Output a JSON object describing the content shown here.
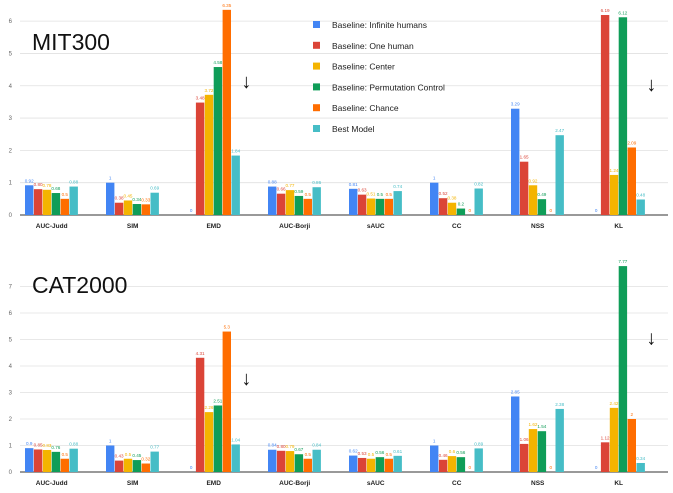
{
  "legend": {
    "placement": "top-center",
    "entries": [
      {
        "label": "Baseline: Infinite humans",
        "color": "#4285f4"
      },
      {
        "label": "Baseline: One human",
        "color": "#db4437"
      },
      {
        "label": "Baseline: Center",
        "color": "#f4b400"
      },
      {
        "label": "Baseline: Permutation Control",
        "color": "#0f9d58"
      },
      {
        "label": "Baseline: Chance",
        "color": "#ff6d00"
      },
      {
        "label": "Best Model",
        "color": "#46bdc6"
      }
    ]
  },
  "arrow_glyph": "↓",
  "chart_data": [
    {
      "type": "bar",
      "title": "MIT300",
      "xlabel": "",
      "ylabel": "",
      "ylim": [
        0,
        6.5
      ],
      "yticks": [
        "0",
        "1",
        "2",
        "3",
        "4",
        "5",
        "6"
      ],
      "grid": true,
      "categories": [
        "AUC-Judd",
        "SIM",
        "EMD",
        "AUC-Borji",
        "sAUC",
        "CC",
        "NSS",
        "KL"
      ],
      "series": [
        {
          "name": "Baseline: Infinite humans",
          "values": [
            0.92,
            1,
            0,
            0.88,
            0.81,
            1,
            3.29,
            0
          ],
          "labels": [
            "0.92",
            "1",
            "0",
            "0.88",
            "0.81",
            "1",
            "3.29",
            "0"
          ]
        },
        {
          "name": "Baseline: One human",
          "values": [
            0.8,
            0.38,
            3.48,
            0.66,
            0.63,
            0.52,
            1.65,
            6.19
          ],
          "labels": [
            "0.80",
            "0.38",
            "3.48",
            "0.66",
            "0.63",
            "0.52",
            "1.65",
            "6.19"
          ]
        },
        {
          "name": "Baseline: Center",
          "values": [
            0.78,
            0.45,
            3.72,
            0.77,
            0.51,
            0.38,
            0.92,
            1.24
          ],
          "labels": [
            "0.78",
            "0.45",
            "3.72",
            "0.77",
            "0.51",
            "0.38",
            "0.92",
            "1.24"
          ]
        },
        {
          "name": "Baseline: Permutation Control",
          "values": [
            0.68,
            0.34,
            4.58,
            0.59,
            0.5,
            0.2,
            0.49,
            6.12
          ],
          "labels": [
            "0.68",
            "0.34",
            "4.58",
            "0.59",
            "0.5",
            "0.2",
            "0.49",
            "6.12"
          ]
        },
        {
          "name": "Baseline: Chance",
          "values": [
            0.5,
            0.33,
            6.35,
            0.5,
            0.5,
            0,
            0,
            2.09
          ],
          "labels": [
            "0.5",
            "0.33",
            "6.35",
            "0.5",
            "0.5",
            "0",
            "0",
            "2.09"
          ]
        },
        {
          "name": "Best Model",
          "values": [
            0.88,
            0.69,
            1.84,
            0.86,
            0.74,
            0.82,
            2.47,
            0.48
          ],
          "labels": [
            "0.88",
            "0.69",
            "1.84",
            "0.86",
            "0.74",
            "0.82",
            "2.47",
            "0.48"
          ]
        }
      ],
      "arrows_on": [
        "EMD",
        "KL"
      ]
    },
    {
      "type": "bar",
      "title": "CAT2000",
      "xlabel": "",
      "ylabel": "",
      "ylim": [
        0,
        8
      ],
      "yticks": [
        "0",
        "1",
        "2",
        "3",
        "4",
        "5",
        "6",
        "7"
      ],
      "grid": true,
      "categories": [
        "AUC-Judd",
        "SIM",
        "EMD",
        "AUC-Borji",
        "sAUC",
        "CC",
        "NSS",
        "KL"
      ],
      "series": [
        {
          "name": "Baseline: Infinite humans",
          "values": [
            0.9,
            1,
            0,
            0.84,
            0.62,
            1,
            2.85,
            0
          ],
          "labels": [
            "0.9",
            "1",
            "0",
            "0.84",
            "0.62",
            "1",
            "2.85",
            "0"
          ]
        },
        {
          "name": "Baseline: One human",
          "values": [
            0.85,
            0.43,
            4.31,
            0.8,
            0.53,
            0.46,
            1.06,
            1.12
          ],
          "labels": [
            "0.85",
            "0.43",
            "4.31",
            "0.80",
            "0.53",
            "0.46",
            "1.06",
            "1.12"
          ]
        },
        {
          "name": "Baseline: Center",
          "values": [
            0.83,
            0.5,
            2.26,
            0.79,
            0.5,
            0.6,
            1.62,
            2.42
          ],
          "labels": [
            "0.83",
            "0.5",
            "2.26",
            "0.79",
            "0.5",
            "0.6",
            "1.62",
            "2.42"
          ]
        },
        {
          "name": "Baseline: Permutation Control",
          "values": [
            0.76,
            0.45,
            2.51,
            0.67,
            0.56,
            0.56,
            1.54,
            7.77
          ],
          "labels": [
            "0.76",
            "0.45",
            "2.51",
            "0.67",
            "0.56",
            "0.56",
            "1.54",
            "7.77"
          ]
        },
        {
          "name": "Baseline: Chance",
          "values": [
            0.5,
            0.32,
            5.3,
            0.5,
            0.5,
            0,
            0,
            2
          ],
          "labels": [
            "0.5",
            "0.32",
            "5.3",
            "0.5",
            "0.5",
            "0",
            "0",
            "2"
          ]
        },
        {
          "name": "Best Model",
          "values": [
            0.88,
            0.77,
            1.04,
            0.84,
            0.61,
            0.89,
            2.38,
            0.34
          ],
          "labels": [
            "0.88",
            "0.77",
            "1.04",
            "0.84",
            "0.61",
            "0.89",
            "2.38",
            "0.34"
          ]
        }
      ],
      "arrows_on": [
        "EMD",
        "KL"
      ]
    }
  ]
}
